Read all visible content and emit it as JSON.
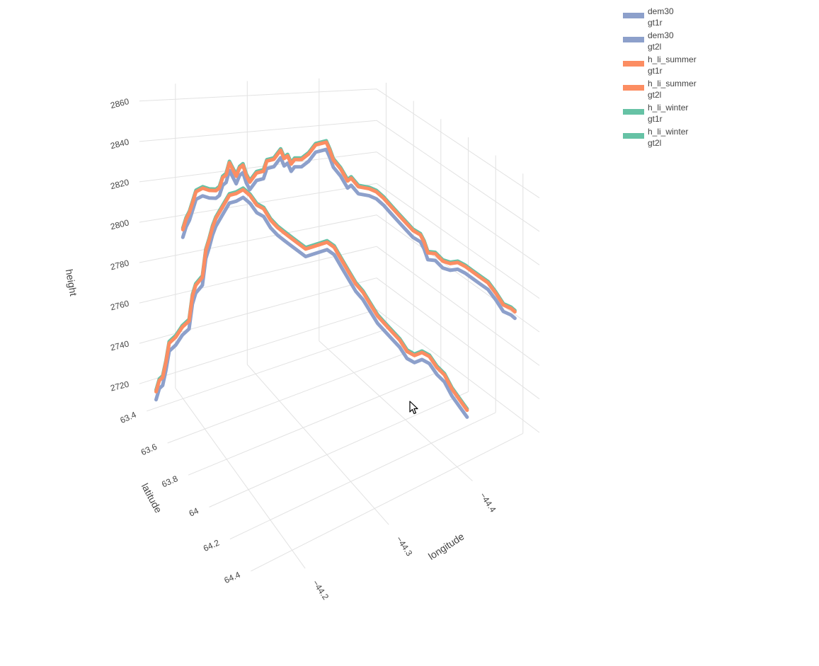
{
  "chart_data": {
    "type": "line3d",
    "axes": {
      "x": {
        "title": "longitude",
        "ticks": [
          "−44.2",
          "−44.3",
          "−44.4"
        ],
        "tick_values": [
          -44.2,
          -44.3,
          -44.4
        ],
        "range": [
          -44.15,
          -44.48
        ]
      },
      "y": {
        "title": "latitude",
        "ticks": [
          "63.4",
          "63.6",
          "63.8",
          "64",
          "64.2",
          "64.4"
        ],
        "tick_values": [
          63.4,
          63.6,
          63.8,
          64.0,
          64.2,
          64.4
        ],
        "range": [
          63.33,
          64.52
        ]
      },
      "z": {
        "title": "height",
        "ticks": [
          "2720",
          "2740",
          "2760",
          "2780",
          "2800",
          "2820",
          "2840",
          "2860"
        ],
        "tick_values": [
          2720,
          2740,
          2760,
          2780,
          2800,
          2820,
          2840,
          2860
        ],
        "range": [
          2712,
          2868
        ]
      }
    },
    "series": [
      {
        "name": "dem30",
        "beam": "gt1r",
        "color": "#8da0cb"
      },
      {
        "name": "dem30",
        "beam": "gt2l",
        "color": "#8da0cb"
      },
      {
        "name": "h_li_summer",
        "beam": "gt1r",
        "color": "#fc8d62"
      },
      {
        "name": "h_li_summer",
        "beam": "gt2l",
        "color": "#fc8d62"
      },
      {
        "name": "h_li_winter",
        "beam": "gt1r",
        "color": "#66c2a5"
      },
      {
        "name": "h_li_winter",
        "beam": "gt2l",
        "color": "#66c2a5"
      }
    ],
    "profile": {
      "comment_free": true,
      "start": {
        "lon": -44.16,
        "lat": 63.42
      },
      "end": {
        "lon": -44.46,
        "lat": 64.45
      },
      "gt2l_lon_offset": 0.0,
      "gt1r_lat_offset": 0.0,
      "height_gt1r": [
        [
          0.0,
          2790
        ],
        [
          0.01,
          2796
        ],
        [
          0.02,
          2800
        ],
        [
          0.03,
          2806
        ],
        [
          0.04,
          2812
        ],
        [
          0.06,
          2815
        ],
        [
          0.08,
          2815
        ],
        [
          0.1,
          2816
        ],
        [
          0.11,
          2818
        ],
        [
          0.12,
          2824
        ],
        [
          0.13,
          2826
        ],
        [
          0.14,
          2833
        ],
        [
          0.15,
          2830
        ],
        [
          0.16,
          2827
        ],
        [
          0.17,
          2832
        ],
        [
          0.18,
          2834
        ],
        [
          0.19,
          2829
        ],
        [
          0.2,
          2826
        ],
        [
          0.22,
          2832
        ],
        [
          0.24,
          2834
        ],
        [
          0.25,
          2840
        ],
        [
          0.27,
          2842
        ],
        [
          0.29,
          2848
        ],
        [
          0.3,
          2844
        ],
        [
          0.31,
          2846
        ],
        [
          0.32,
          2842
        ],
        [
          0.33,
          2845
        ],
        [
          0.35,
          2846
        ],
        [
          0.37,
          2850
        ],
        [
          0.39,
          2856
        ],
        [
          0.41,
          2858
        ],
        [
          0.42,
          2859
        ],
        [
          0.43,
          2855
        ],
        [
          0.44,
          2850
        ],
        [
          0.46,
          2846
        ],
        [
          0.48,
          2840
        ],
        [
          0.49,
          2842
        ],
        [
          0.51,
          2838
        ],
        [
          0.54,
          2838
        ],
        [
          0.56,
          2837
        ],
        [
          0.58,
          2834
        ],
        [
          0.6,
          2830
        ],
        [
          0.62,
          2826
        ],
        [
          0.64,
          2822
        ],
        [
          0.66,
          2818
        ],
        [
          0.68,
          2816
        ],
        [
          0.69,
          2812
        ],
        [
          0.7,
          2806
        ],
        [
          0.72,
          2806
        ],
        [
          0.74,
          2802
        ],
        [
          0.76,
          2801
        ],
        [
          0.78,
          2802
        ],
        [
          0.8,
          2800
        ],
        [
          0.82,
          2797
        ],
        [
          0.84,
          2794
        ],
        [
          0.86,
          2791
        ],
        [
          0.88,
          2785
        ],
        [
          0.9,
          2778
        ],
        [
          0.92,
          2776
        ],
        [
          0.93,
          2774
        ]
      ],
      "height_gt2l": [
        [
          0.0,
          2722
        ],
        [
          0.01,
          2728
        ],
        [
          0.02,
          2730
        ],
        [
          0.03,
          2738
        ],
        [
          0.04,
          2748
        ],
        [
          0.06,
          2752
        ],
        [
          0.08,
          2758
        ],
        [
          0.1,
          2762
        ],
        [
          0.11,
          2775
        ],
        [
          0.12,
          2781
        ],
        [
          0.14,
          2786
        ],
        [
          0.15,
          2800
        ],
        [
          0.16,
          2806
        ],
        [
          0.17,
          2813
        ],
        [
          0.18,
          2818
        ],
        [
          0.2,
          2825
        ],
        [
          0.22,
          2832
        ],
        [
          0.24,
          2834
        ],
        [
          0.26,
          2837
        ],
        [
          0.28,
          2835
        ],
        [
          0.3,
          2831
        ],
        [
          0.32,
          2830
        ],
        [
          0.34,
          2825
        ],
        [
          0.36,
          2822
        ],
        [
          0.38,
          2820
        ],
        [
          0.4,
          2818
        ],
        [
          0.42,
          2816
        ],
        [
          0.44,
          2814
        ],
        [
          0.46,
          2816
        ],
        [
          0.48,
          2818
        ],
        [
          0.5,
          2820
        ],
        [
          0.52,
          2818
        ],
        [
          0.54,
          2812
        ],
        [
          0.56,
          2806
        ],
        [
          0.58,
          2800
        ],
        [
          0.6,
          2796
        ],
        [
          0.62,
          2790
        ],
        [
          0.64,
          2784
        ],
        [
          0.66,
          2780
        ],
        [
          0.68,
          2776
        ],
        [
          0.7,
          2772
        ],
        [
          0.72,
          2766
        ],
        [
          0.74,
          2764
        ],
        [
          0.76,
          2766
        ],
        [
          0.78,
          2764
        ],
        [
          0.8,
          2758
        ],
        [
          0.82,
          2754
        ],
        [
          0.84,
          2746
        ],
        [
          0.86,
          2740
        ],
        [
          0.88,
          2734
        ]
      ]
    }
  },
  "legend": {
    "items": [
      {
        "line1": "dem30",
        "line2": "gt1r",
        "color": "#8da0cb"
      },
      {
        "line1": "dem30",
        "line2": "gt2l",
        "color": "#8da0cb"
      },
      {
        "line1": "h_li_summer",
        "line2": "gt1r",
        "color": "#fc8d62"
      },
      {
        "line1": "h_li_summer",
        "line2": "gt2l",
        "color": "#fc8d62"
      },
      {
        "line1": "h_li_winter",
        "line2": "gt1r",
        "color": "#66c2a5"
      },
      {
        "line1": "h_li_winter",
        "line2": "gt2l",
        "color": "#66c2a5"
      }
    ]
  }
}
